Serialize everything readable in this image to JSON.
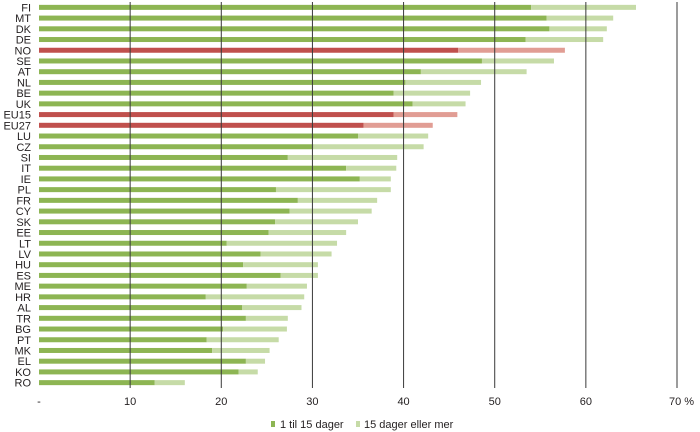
{
  "chart_data": {
    "type": "bar",
    "orientation": "horizontal",
    "stacked": true,
    "categories": [
      "FI",
      "MT",
      "DK",
      "DE",
      "NO",
      "SE",
      "AT",
      "NL",
      "BE",
      "UK",
      "EU15",
      "EU27",
      "LU",
      "CZ",
      "SI",
      "IT",
      "IE",
      "PL",
      "FR",
      "CY",
      "SK",
      "EE",
      "LT",
      "LV",
      "HU",
      "ES",
      "ME",
      "HR",
      "AL",
      "TR",
      "BG",
      "PT",
      "MK",
      "EL",
      "KO",
      "RO"
    ],
    "highlighted_categories": [
      "NO",
      "EU15",
      "EU27"
    ],
    "series": [
      {
        "name": "1 til 15 dager",
        "values": [
          54.0,
          55.7,
          56.0,
          53.4,
          46.0,
          48.6,
          41.9,
          40.2,
          38.9,
          41.0,
          38.9,
          35.6,
          35.0,
          30.1,
          27.3,
          33.7,
          35.2,
          26.0,
          28.4,
          27.5,
          25.9,
          25.2,
          20.6,
          24.3,
          22.4,
          26.5,
          22.8,
          18.3,
          22.3,
          22.7,
          20.2,
          18.4,
          19.0,
          22.7,
          21.9,
          12.7
        ]
      },
      {
        "name": "15 dager eller mer",
        "values": [
          11.5,
          7.3,
          6.3,
          8.5,
          11.7,
          7.9,
          11.6,
          8.3,
          8.4,
          5.8,
          7.0,
          7.6,
          7.7,
          12.1,
          12.0,
          5.5,
          3.4,
          12.6,
          8.7,
          9.0,
          9.1,
          8.5,
          12.1,
          7.8,
          8.2,
          4.1,
          6.6,
          10.8,
          6.5,
          4.6,
          7.0,
          7.9,
          6.3,
          2.1,
          2.1,
          3.3
        ]
      }
    ],
    "colors": {
      "series1": "#8db553",
      "series2": "#c6dba7",
      "series1_highlight": "#c0504d",
      "series2_highlight": "#e19d94",
      "gridline": "#3a3a3a"
    },
    "xlim": [
      0,
      70
    ],
    "x_ticks": [
      "-",
      "10",
      "20",
      "30",
      "40",
      "50",
      "60",
      "70 %"
    ],
    "grid": true,
    "legend_position": "bottom"
  }
}
